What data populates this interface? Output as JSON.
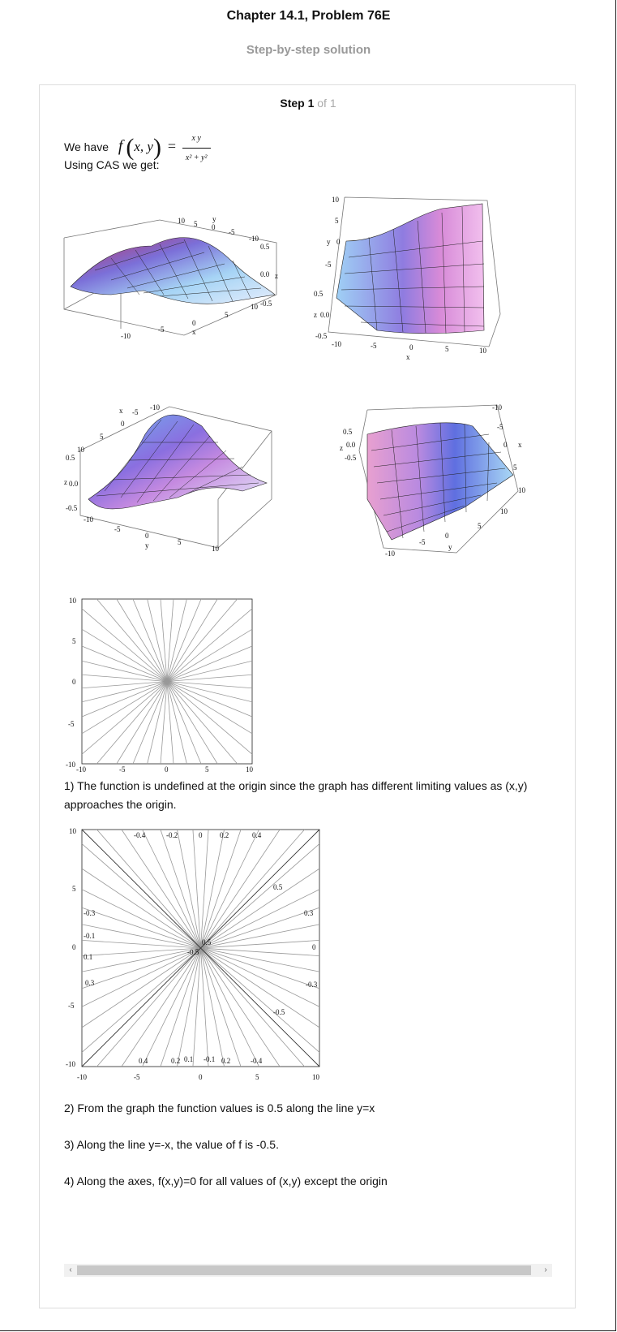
{
  "header": {
    "title": "Chapter 14.1, Problem 76E",
    "subtitle": "Step-by-step solution"
  },
  "step": {
    "label": "Step 1",
    "of": "of 1"
  },
  "content": {
    "we_have": "We have",
    "fn_lhs": "f",
    "fn_args": "x, y",
    "fn_num": "x y",
    "fn_den": "x² + y²",
    "using_cas": "Using CAS we get:",
    "p1": "1) The function is undefined at the origin since the graph has different limiting values as (x,y) approaches the origin.",
    "p2": "2) From the graph the function values is 0.5  along the line y=x",
    "p3": "3) Along the line y=-x, the value of f is  -0.5.",
    "p4": "4) Along the axes, f(x,y)=0 for all values of (x,y) except the origin"
  },
  "plot3d_labels": {
    "ticks_xy": [
      "-10",
      "-5",
      "0",
      "5",
      "10"
    ],
    "ticks_z": [
      "-0.5",
      "0.0",
      "0.5"
    ],
    "x": "x",
    "y": "y",
    "z": "z"
  },
  "contour1": {
    "xticks": [
      "-10",
      "-5",
      "0",
      "5",
      "10"
    ],
    "yticks": [
      "10",
      "5",
      "0",
      "-5",
      "-10"
    ]
  },
  "contour2": {
    "xticks": [
      "-10",
      "-5",
      "0",
      "5",
      "10"
    ],
    "yticks": [
      "10",
      "5",
      "0",
      "-5",
      "-10"
    ],
    "top_labels": [
      "-0.4",
      "-0.2",
      "0",
      "0.2",
      "0.4"
    ],
    "bottom_labels": [
      "0.4",
      "0.2",
      "0.1",
      "-0.1",
      "0.2",
      "-0.4"
    ],
    "left_labels": [
      "-0.3",
      "-0.1",
      "0.1",
      "0.3"
    ],
    "right_labels": [
      "0.3",
      "0",
      "-0.3"
    ],
    "inner_labels": [
      "0.5",
      "-0.5",
      "0.5",
      "-0.5"
    ]
  },
  "scrollbar": {
    "left": "‹",
    "right": "›"
  }
}
